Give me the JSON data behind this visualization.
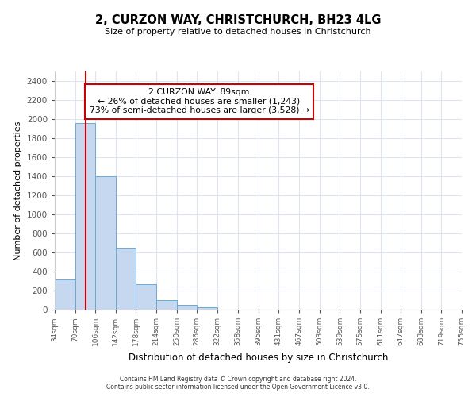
{
  "title": "2, CURZON WAY, CHRISTCHURCH, BH23 4LG",
  "subtitle": "Size of property relative to detached houses in Christchurch",
  "xlabel": "Distribution of detached houses by size in Christchurch",
  "ylabel": "Number of detached properties",
  "bar_heights": [
    320,
    1960,
    1400,
    650,
    270,
    100,
    50,
    25,
    0,
    0,
    0,
    0,
    0,
    0,
    0,
    0,
    0,
    0,
    0,
    0
  ],
  "bin_edges": [
    34,
    70,
    106,
    142,
    178,
    214,
    250,
    286,
    322,
    358,
    395,
    431,
    467,
    503,
    539,
    575,
    611,
    647,
    683,
    719,
    755
  ],
  "tick_labels": [
    "34sqm",
    "70sqm",
    "106sqm",
    "142sqm",
    "178sqm",
    "214sqm",
    "250sqm",
    "286sqm",
    "322sqm",
    "358sqm",
    "395sqm",
    "431sqm",
    "467sqm",
    "503sqm",
    "539sqm",
    "575sqm",
    "611sqm",
    "647sqm",
    "683sqm",
    "719sqm",
    "755sqm"
  ],
  "bar_color": "#c5d8f0",
  "bar_edge_color": "#6aaad4",
  "vline_x": 89,
  "vline_color": "#cc0000",
  "annotation_line1": "2 CURZON WAY: 89sqm",
  "annotation_line2": "← 26% of detached houses are smaller (1,243)",
  "annotation_line3": "73% of semi-detached houses are larger (3,528) →",
  "annotation_box_color": "#ffffff",
  "annotation_box_edge": "#cc0000",
  "ylim": [
    0,
    2500
  ],
  "yticks": [
    0,
    200,
    400,
    600,
    800,
    1000,
    1200,
    1400,
    1600,
    1800,
    2000,
    2200,
    2400
  ],
  "footer_line1": "Contains HM Land Registry data © Crown copyright and database right 2024.",
  "footer_line2": "Contains public sector information licensed under the Open Government Licence v3.0.",
  "background_color": "#ffffff",
  "grid_color": "#dde6f0"
}
